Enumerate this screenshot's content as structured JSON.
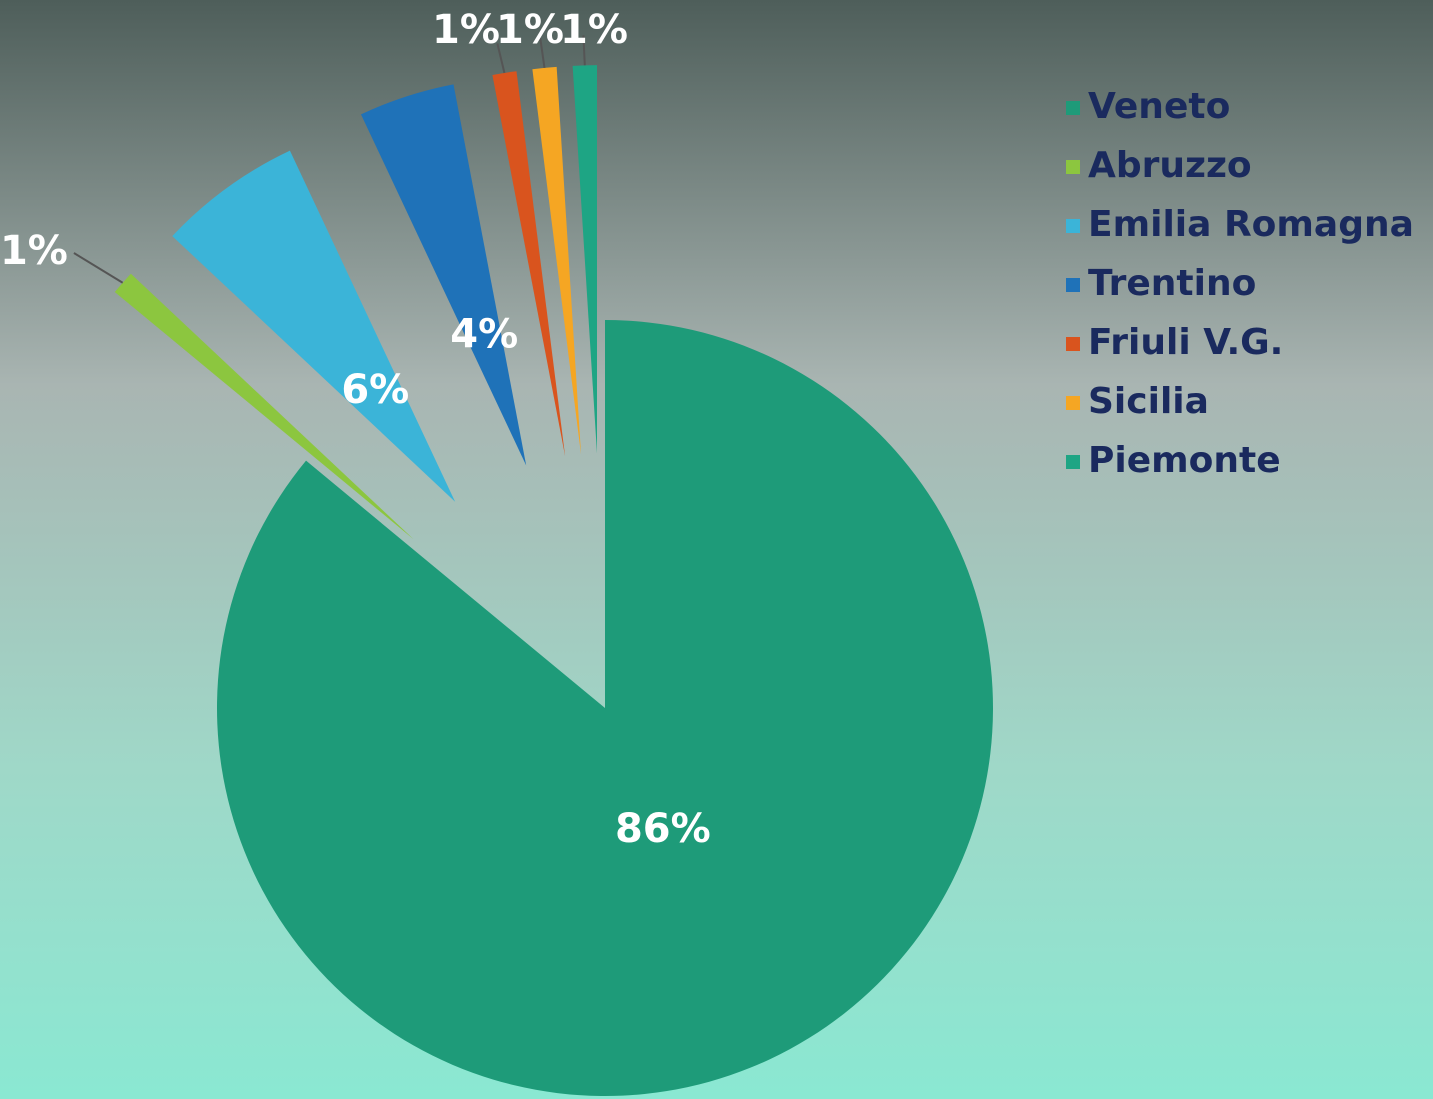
{
  "chart_data": {
    "type": "pie",
    "categories": [
      "Veneto",
      "Abruzzo",
      "Emilia Romagna",
      "Trentino",
      "Friuli V.G.",
      "Sicilia",
      "Piemonte"
    ],
    "values": [
      86,
      1,
      6,
      4,
      1,
      1,
      1
    ],
    "value_labels": [
      "86%",
      "1%",
      "6%",
      "4%",
      "1%",
      "1%",
      "1%"
    ],
    "colors": [
      "#1e9b79",
      "#8cc63f",
      "#3bb4d8",
      "#1f72b8",
      "#d9541e",
      "#f5a623",
      "#1ea584"
    ],
    "legend": "right"
  }
}
